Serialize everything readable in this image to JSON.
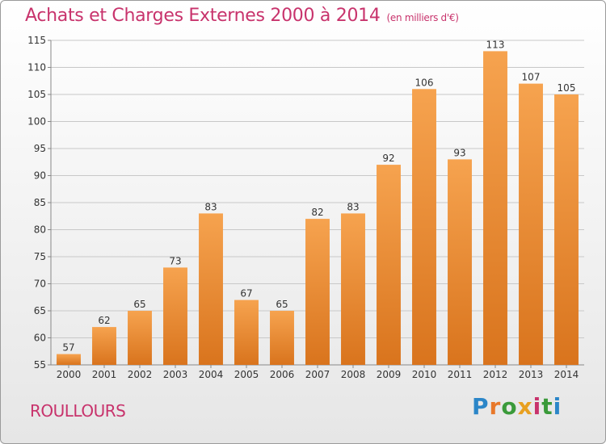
{
  "header": {
    "title": "Achats et Charges Externes 2000 à 2014",
    "subtitle": "(en milliers d'€)"
  },
  "footer": {
    "place": "ROULLOURS",
    "logo": {
      "letters": [
        "P",
        "r",
        "o",
        "x",
        "i",
        "t",
        "i"
      ],
      "colors": [
        "#2b86c8",
        "#e8782a",
        "#3a9a3a",
        "#e8a020",
        "#c8336c",
        "#3a9a3a",
        "#2b86c8"
      ]
    }
  },
  "colors": {
    "bar_top": "#f6a34f",
    "bar_bottom": "#d9741d",
    "grid": "#c8c8c8",
    "axis": "#888888"
  },
  "chart_data": {
    "type": "bar",
    "title": "Achats et Charges Externes 2000 à 2014",
    "subtitle": "(en milliers d'€)",
    "categories": [
      "2000",
      "2001",
      "2002",
      "2003",
      "2004",
      "2005",
      "2006",
      "2007",
      "2008",
      "2009",
      "2010",
      "2011",
      "2012",
      "2013",
      "2014"
    ],
    "values": [
      57,
      62,
      65,
      73,
      83,
      67,
      65,
      82,
      83,
      92,
      106,
      93,
      113,
      107,
      105
    ],
    "ylim": [
      55,
      115
    ],
    "yticks": [
      55,
      60,
      65,
      70,
      75,
      80,
      85,
      90,
      95,
      100,
      105,
      110,
      115
    ],
    "grid": true,
    "legend": "none"
  }
}
